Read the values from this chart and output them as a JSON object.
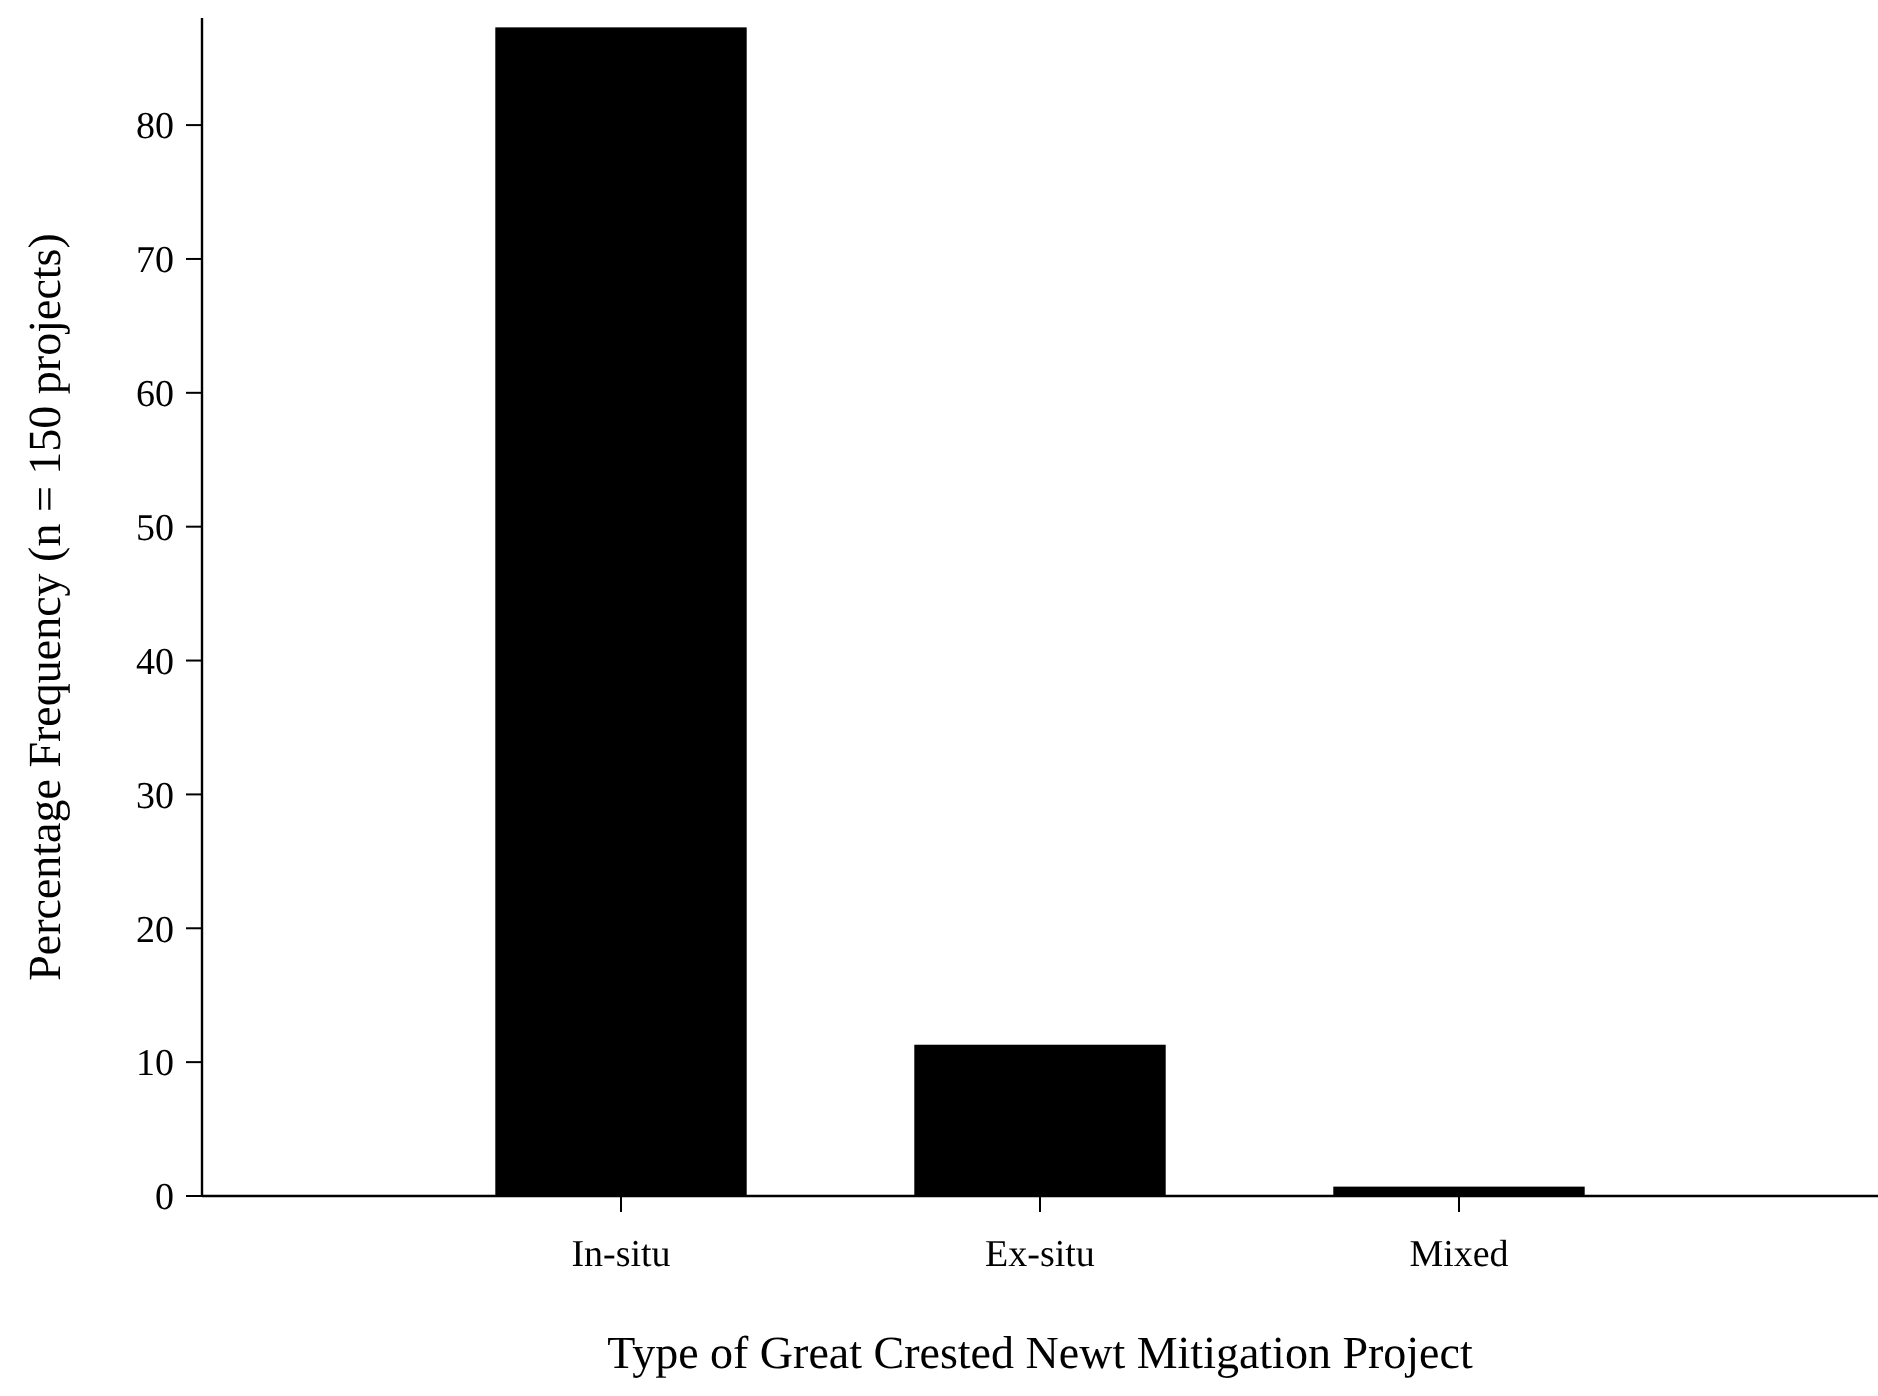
{
  "chart_data": {
    "type": "bar",
    "xlabel": "Type of Great Crested Newt Mitigation Project",
    "ylabel": "Percentage Frequency (n = 150 projects)",
    "categories": [
      "In-situ",
      "Ex-situ",
      "Mixed"
    ],
    "values": [
      87.3,
      11.3,
      0.7
    ],
    "color": "#000000",
    "ylim": [
      0,
      88
    ],
    "yticks": [
      0,
      10,
      20,
      30,
      40,
      50,
      60,
      70,
      80
    ]
  }
}
